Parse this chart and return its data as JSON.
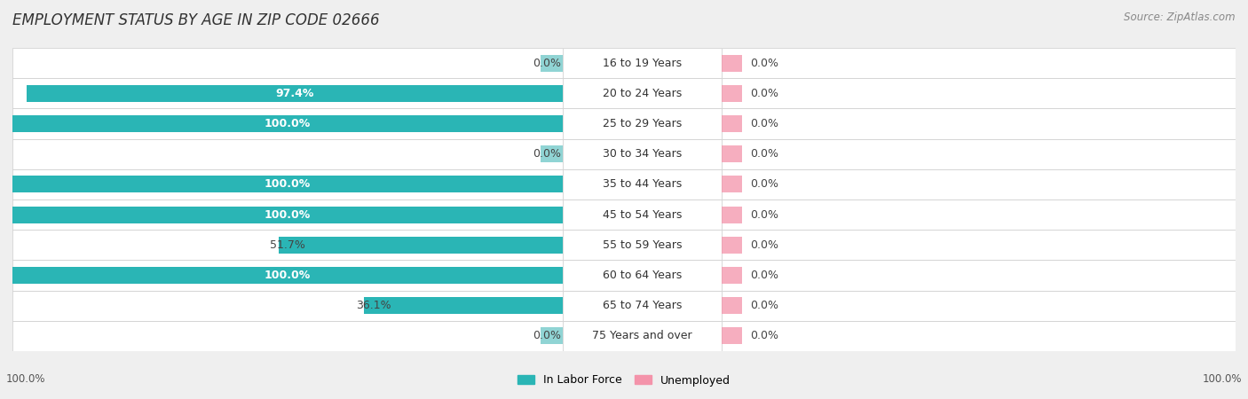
{
  "title": "EMPLOYMENT STATUS BY AGE IN ZIP CODE 02666",
  "source": "Source: ZipAtlas.com",
  "categories": [
    "16 to 19 Years",
    "20 to 24 Years",
    "25 to 29 Years",
    "30 to 34 Years",
    "35 to 44 Years",
    "45 to 54 Years",
    "55 to 59 Years",
    "60 to 64 Years",
    "65 to 74 Years",
    "75 Years and over"
  ],
  "labor_force": [
    0.0,
    97.4,
    100.0,
    0.0,
    100.0,
    100.0,
    51.7,
    100.0,
    36.1,
    0.0
  ],
  "unemployed": [
    0.0,
    0.0,
    0.0,
    0.0,
    0.0,
    0.0,
    0.0,
    0.0,
    0.0,
    0.0
  ],
  "labor_force_color": "#2ab5b5",
  "labor_force_color_light": "#90d4d4",
  "unemployed_color": "#f493aa",
  "unemployed_color_light": "#f8bfcc",
  "row_bg_color": "#ffffff",
  "row_bg_alt": "#f0f0f0",
  "background_color": "#efefef",
  "bar_height": 0.55,
  "xlim": 100,
  "stub_val": 4.0,
  "legend_labor": "In Labor Force",
  "legend_unemployed": "Unemployed",
  "title_fontsize": 12,
  "label_fontsize": 9,
  "category_fontsize": 9,
  "source_fontsize": 8.5,
  "axis_label_fontsize": 8.5
}
